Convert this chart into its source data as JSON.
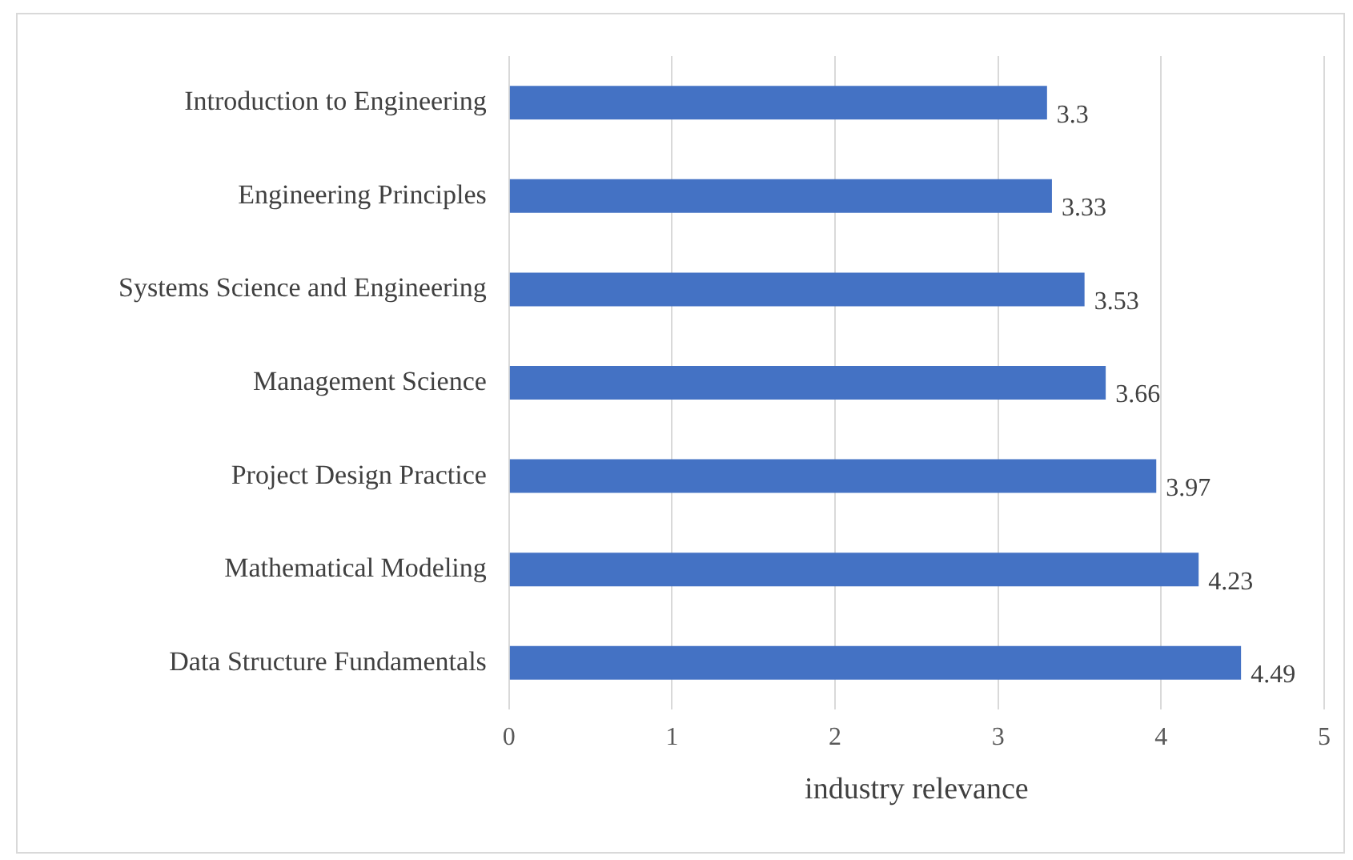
{
  "chart_data": {
    "type": "bar",
    "orientation": "horizontal",
    "xlabel": "industry relevance",
    "categories": [
      "Introduction to Engineering",
      "Engineering Principles",
      "Systems Science and Engineering",
      "Management Science",
      "Project Design Practice",
      "Mathematical Modeling",
      "Data Structure Fundamentals"
    ],
    "values": [
      3.3,
      3.33,
      3.53,
      3.66,
      3.97,
      4.23,
      4.49
    ],
    "color": "#4472c4",
    "xlim": [
      0,
      5
    ],
    "xticks": [
      0,
      1,
      2,
      3,
      4,
      5
    ],
    "grid": "x",
    "data_labels": true,
    "legend": false
  }
}
